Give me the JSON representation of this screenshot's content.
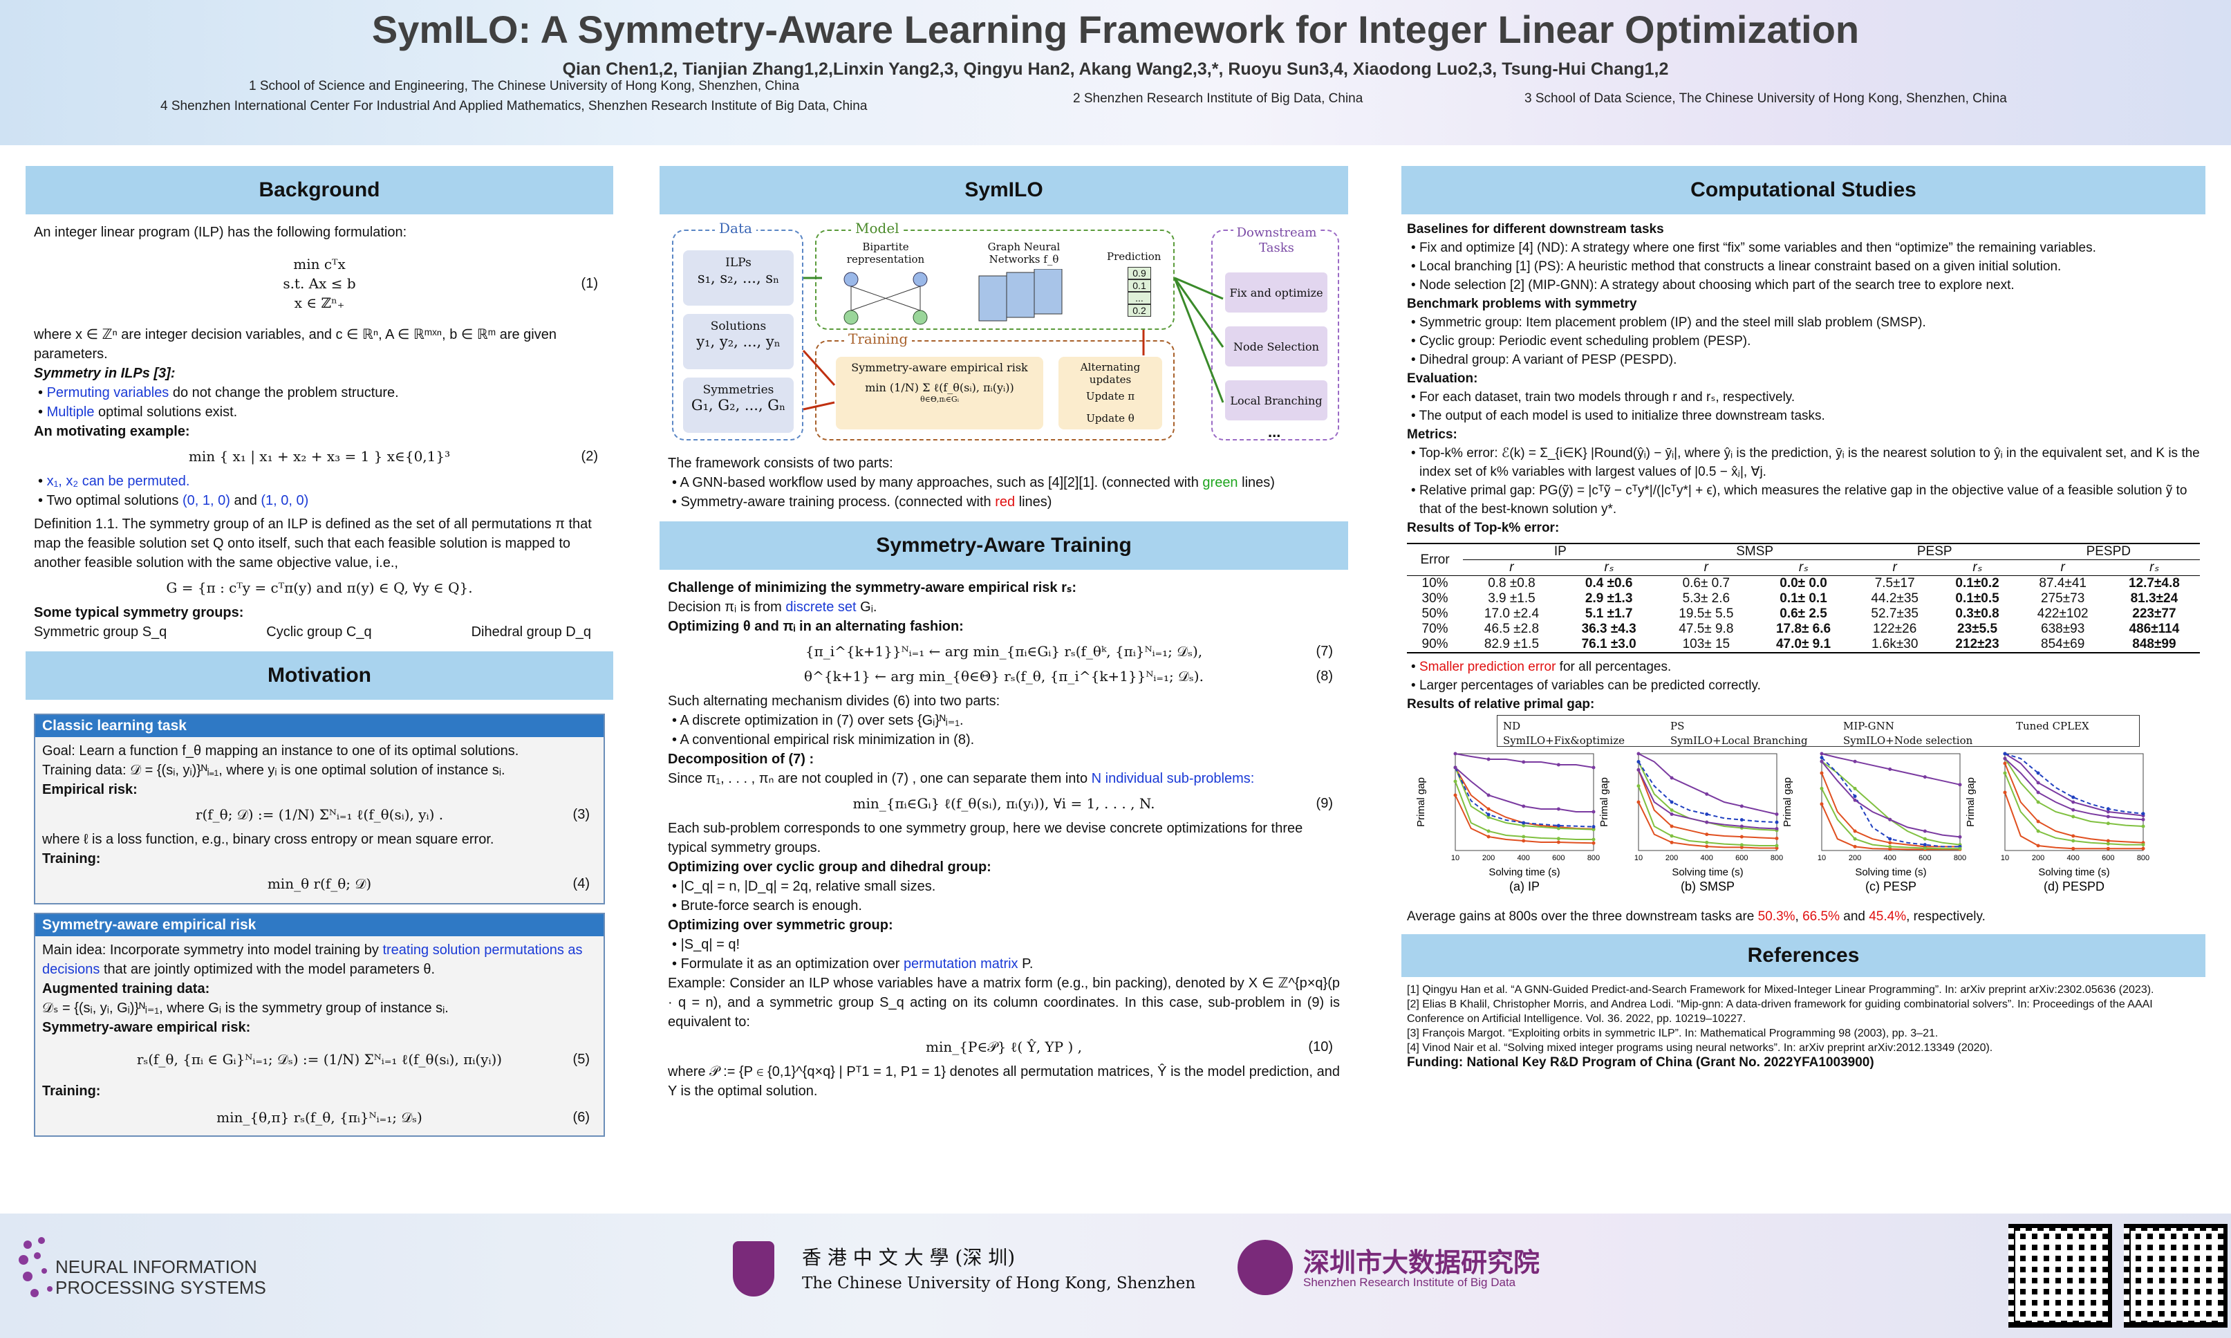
{
  "title": "SymILO: A Symmetry-Aware Learning Framework for Integer Linear Optimization",
  "authors": "Qian Chen1,2, Tianjian Zhang1,2,Linxin Yang2,3, Qingyu Han2, Akang Wang2,3,*, Ruoyu Sun3,4, Xiaodong Luo2,3, Tsung-Hui Chang1,2",
  "affiliations": {
    "a1": "1 School of Science and Engineering, The Chinese University of Hong Kong, Shenzhen, China",
    "a4": "4 Shenzhen International Center For Industrial And Applied Mathematics, Shenzhen Research Institute of Big Data, China",
    "a2": "2 Shenzhen Research Institute of Big Data, China",
    "a3": "3 School of Data Science, The Chinese University of Hong Kong, Shenzhen, China"
  },
  "background": {
    "heading": "Background",
    "intro": "An integer linear program (ILP) has the following formulation:",
    "eq1_line1": "min cᵀx",
    "eq1_line2": "s.t.  Ax ≤ b",
    "eq1_line3": "x ∈ ℤⁿ₊",
    "eq1_num": "(1)",
    "where": "where x ∈ ℤⁿ are integer decision variables, and c ∈ ℝⁿ, A ∈ ℝᵐˣⁿ, b ∈ ℝᵐ are given parameters.",
    "sym_title": "Symmetry in ILPs [3]:",
    "sym_b1a": "Permuting variables",
    "sym_b1b": " do not change the problem structure.",
    "sym_b2a": "Multiple",
    "sym_b2b": " optimal solutions exist.",
    "motiv_title": "An motivating example:",
    "eq2": "min { x₁ | x₁ + x₂ + x₃ = 1 }   x∈{0,1}³",
    "eq2_num": "(2)",
    "mb1": "x₁, x₂ can be permuted.",
    "mb2a": "Two optimal solutions ",
    "mb2b": "(0, 1, 0)",
    "mb2c": " and ",
    "mb2d": "(1, 0, 0)",
    "def": "Definition 1.1. The symmetry group of an ILP is defined as the set of all permutations π that map the feasible solution set Q onto itself, such that each feasible solution is mapped to another feasible solution with the same objective value, i.e.,",
    "eq_g": "G = {π : cᵀy = cᵀπ(y) and π(y) ∈ Q, ∀y ∈ Q}.",
    "groups_title": "Some typical symmetry groups:",
    "g1": "Symmetric group S_q",
    "g2": "Cyclic group C_q",
    "g3": "Dihedral group D_q"
  },
  "motivation": {
    "heading": "Motivation",
    "box1_title": "Classic learning task",
    "goal": "Goal: Learn a function f_θ mapping an instance to one of its optimal solutions.",
    "tdata": "Training data: 𝒟 = {(sᵢ, yᵢ)}ᴺᵢ₌₁, where yᵢ is one optimal solution of instance sᵢ.",
    "erisk": "Empirical risk:",
    "eq3": "r(f_θ; 𝒟) := (1/N) Σᴺᵢ₌₁ ℓ(f_θ(sᵢ), yᵢ) .",
    "eq3_num": "(3)",
    "where_l": "where ℓ is a loss function, e.g., binary cross entropy or mean square error.",
    "training": "Training:",
    "eq4": "min_θ r(f_θ; 𝒟)",
    "eq4_num": "(4)",
    "box2_title": "Symmetry-aware empirical risk",
    "main_a": "Main idea: Incorporate symmetry into model training by ",
    "main_b": "treating solution permutations as decisions",
    "main_c": " that are jointly optimized with the model parameters θ.",
    "aug": "Augmented training data:",
    "aug_eq": "𝒟ₛ = {(sᵢ, yᵢ, Gᵢ)}ᴺᵢ₌₁, where Gᵢ is the symmetry group of instance sᵢ.",
    "sar": "Symmetry-aware empirical risk:",
    "eq5": "rₛ(f_θ, {πᵢ ∈ Gᵢ}ᴺᵢ₌₁; 𝒟ₛ) := (1/N) Σᴺᵢ₌₁ ℓ(f_θ(sᵢ), πᵢ(yᵢ))",
    "eq5_num": "(5)",
    "training2": "Training:",
    "eq6": "min_{θ,π} rₛ(f_θ, {πᵢ}ᴺᵢ₌₁; 𝒟ₛ)",
    "eq6_num": "(6)"
  },
  "symilo": {
    "heading": "SymILO",
    "fig": {
      "data": "Data",
      "ilps": "ILPs",
      "ilps_v": "s₁, s₂, ..., sₙ",
      "sol": "Solutions",
      "sol_v": "y₁, y₂, ..., yₙ",
      "syms": "Symmetries",
      "syms_v": "G₁, G₂, ..., Gₙ",
      "model": "Model",
      "bip": "Bipartite representation",
      "gnn": "Graph Neural Networks f_θ",
      "pred": "Prediction",
      "p1": "0.9",
      "p2": "0.1",
      "p3": "...",
      "p4": "0.2",
      "training": "Training",
      "sarisk": "Symmetry-aware empirical risk",
      "risk_eq": "min (1/N) Σ ℓ(f_θ(sᵢ), πᵢ(yᵢ))",
      "risk_sub": "θ∈Θ,πᵢ∈Gᵢ",
      "alt": "Alternating updates",
      "upi": "Update π",
      "uth": "Update θ",
      "down": "Downstream Tasks",
      "d1": "Fix and optimize",
      "d2": "Node Selection",
      "d3": "Local Branching",
      "d4": "..."
    },
    "fw": "The framework consists of two parts:",
    "fb1a": "A GNN-based workflow used by many approaches, such as [4][2][1]. (connected with ",
    "fb1b": "green",
    "fb1c": " lines)",
    "fb2a": "Symmetry-aware training process. (connected with ",
    "fb2b": "red",
    "fb2c": " lines)"
  },
  "training": {
    "heading": "Symmetry-Aware Training",
    "ch": "Challenge of minimizing the symmetry-aware empirical risk rₛ:",
    "dec_a": "Decision πᵢ is from ",
    "dec_b": "discrete set",
    "dec_c": " Gᵢ.",
    "opt": "Optimizing θ and πᵢ in an alternating fashion:",
    "eq7": "{π_i^{k+1}}ᴺᵢ₌₁ ← arg min_{πᵢ∈Gᵢ} rₛ(f_θᵏ, {πᵢ}ᴺᵢ₌₁; 𝒟ₛ),",
    "eq7_num": "(7)",
    "eq8": "θ^{k+1} ← arg min_{θ∈Θ} rₛ(f_θ, {π_i^{k+1}}ᴺᵢ₌₁; 𝒟ₛ).",
    "eq8_num": "(8)",
    "such": "Such alternating mechanism divides (6) into two parts:",
    "sb1": "A discrete optimization in (7) over sets {Gᵢ}ᴺᵢ₌₁.",
    "sb2": "A conventional empirical risk minimization in (8).",
    "decomp": "Decomposition of (7) :",
    "since_a": "Since π₁, . . . , πₙ are not coupled in (7) , one can separate them into ",
    "since_b": "N individual sub-problems:",
    "eq9": "min_{πᵢ∈Gᵢ} ℓ(f_θ(sᵢ), πᵢ(yᵢ)), ∀i = 1, . . . , N.",
    "eq9_num": "(9)",
    "each": "Each sub-problem corresponds to one symmetry group, here we devise concrete optimizations for three typical symmetry groups.",
    "cyc": "Optimizing over cyclic group and dihedral group:",
    "cb1": "|C_q| = n, |D_q| = 2q, relative small sizes.",
    "cb2": "Brute-force search is enough.",
    "symg": "Optimizing over symmetric group:",
    "sg1": "|S_q| = q!",
    "sg2a": "Formulate it as an optimization over ",
    "sg2b": "permutation matrix",
    "sg2c": " P.",
    "ex": "Example:  Consider an ILP whose variables have a matrix form (e.g., bin packing), denoted by X ∈ ℤ^{p×q}(p · q = n), and a symmetric group S_q acting on its column coordinates. In this case, sub-problem in (9) is equivalent to:",
    "eq10": "min_{P∈𝒫} ℓ( Ŷ, YP ) ,",
    "eq10_num": "(10)",
    "wherep": "where 𝒫 := {P ∈ {0,1}^{q×q} | Pᵀ1 = 1, P1 = 1} denotes all permutation matrices, Ŷ is the model prediction, and Y is the optimal solution."
  },
  "comp": {
    "heading": "Computational Studies",
    "base_title": "Baselines for different downstream tasks",
    "b1": "Fix and optimize [4] (ND): A strategy where one first “fix” some variables and then “optimize” the remaining variables.",
    "b2": "Local branching [1] (PS): A heuristic method that constructs a linear constraint based on a given initial solution.",
    "b3": "Node selection [2] (MIP-GNN): A strategy about choosing which part of the search tree to explore next.",
    "bench_title": "Benchmark problems with symmetry",
    "bb1": "Symmetric group: Item placement problem (IP) and the steel mill slab problem (SMSP).",
    "bb2": "Cyclic group: Periodic event scheduling problem (PESP).",
    "bb3": "Dihedral group: A variant of PESP (PESPD).",
    "eval_title": "Evaluation:",
    "e1": "For each dataset, train two models through r and rₛ, respectively.",
    "e2": "The output of each model is used to initialize three downstream tasks.",
    "metrics_title": "Metrics:",
    "m1": "Top-k% error: ℰ(k) = Σ_{i∈K} |Round(ŷᵢ) − ȳᵢ|, where ŷᵢ is the prediction, ȳᵢ is the nearest solution to ŷᵢ in the equivalent set, and K is the index set of k% variables with largest values of |0.5 − x̂ⱼ|, ∀j.",
    "m2": "Relative primal gap: PG(ỹ) = |cᵀỹ − cᵀy*|/(|cᵀy*| + ϵ), which measures the relative gap in the objective value of a feasible solution ỹ to that of the best-known solution y*.",
    "topk_title": "Results of Top-k% error:",
    "table": {
      "h_err": "Error",
      "groups": [
        "IP",
        "SMSP",
        "PESP",
        "PESPD"
      ],
      "sub": [
        "r",
        "rₛ"
      ],
      "rows": [
        [
          "10%",
          "0.8 ±0.8",
          "0.4 ±0.6",
          "0.6± 0.7",
          "0.0± 0.0",
          "7.5±17",
          "0.1±0.2",
          "87.4±41",
          "12.7±4.8"
        ],
        [
          "30%",
          "3.9 ±1.5",
          "2.9 ±1.3",
          "5.3± 2.6",
          "0.1± 0.1",
          "44.2±35",
          "0.1±0.5",
          "275±73",
          "81.3±24"
        ],
        [
          "50%",
          "17.0 ±2.4",
          "5.1 ±1.7",
          "19.5± 5.5",
          "0.6± 2.5",
          "52.7±35",
          "0.3±0.8",
          "422±102",
          "223±77"
        ],
        [
          "70%",
          "46.5 ±2.8",
          "36.3 ±4.3",
          "47.5± 9.8",
          "17.8± 6.6",
          "122±26",
          "23±5.5",
          "638±93",
          "486±114"
        ],
        [
          "90%",
          "82.9 ±1.5",
          "76.1 ±3.0",
          "103± 15",
          "47.0± 9.1",
          "1.6k±30",
          "212±23",
          "854±69",
          "848±99"
        ]
      ]
    },
    "r1a": "Smaller prediction error",
    "r1b": " for all percentages.",
    "r2": "Larger percentages of variables can be predicted correctly.",
    "rpg_title": "Results of relative primal gap:",
    "legend": [
      "ND",
      "PS",
      "MIP-GNN",
      "Tuned CPLEX",
      "SymILO+Fix&optimize",
      "SymILO+Local Branching",
      "SymILO+Node selection"
    ],
    "ylabel": "Primal gap",
    "xlabel": "Solving time (s)",
    "xticks": [
      "10",
      "200",
      "400",
      "600",
      "800"
    ],
    "captions": [
      "(a) IP",
      "(b) SMSP",
      "(c) PESP",
      "(d) PESPD"
    ],
    "avg_a": "Average gains at 800s over the three downstream tasks are ",
    "avg_b": "50.3%",
    "avg_c": ", ",
    "avg_d": "66.5%",
    "avg_e": " and ",
    "avg_f": "45.4%",
    "avg_g": ", respectively."
  },
  "refs": {
    "heading": "References",
    "r1": "[1] Qingyu Han et al. “A GNN-Guided Predict-and-Search Framework for Mixed-Integer Linear Programming”. In: arXiv preprint arXiv:2302.05636 (2023).",
    "r2": "[2] Elias B Khalil, Christopher Morris, and Andrea Lodi. “Mip-gnn: A data-driven framework for guiding combinatorial solvers”. In: Proceedings of the AAAI Conference on Artificial Intelligence. Vol. 36. 2022, pp. 10219–10227.",
    "r3": "[3] François Margot. “Exploiting orbits in symmetric ILP”. In: Mathematical Programming 98 (2003), pp. 3–21.",
    "r4": "[4] Vinod Nair et al. “Solving mixed integer programs using neural networks”. In: arXiv preprint arXiv:2012.13349 (2020).",
    "funding": "Funding: National Key R&D Program of China (Grant No. 2022YFA1003900)"
  },
  "footer": {
    "neurips1": "NEURAL INFORMATION",
    "neurips2": "PROCESSING SYSTEMS",
    "cuhk_cn": "香 港 中 文 大 學 (深 圳)",
    "cuhk_en": "The Chinese University of Hong Kong, Shenzhen",
    "sribd_cn": "深圳市大数据研究院",
    "sribd_en": "Shenzhen Research Institute of Big Data"
  },
  "colors": {
    "header_bar": "#a9d3ee",
    "box_header": "#2f79c5",
    "accent_blue": "#1a3ad6",
    "accent_red": "#e01010",
    "accent_green": "#1fa51f"
  },
  "chart_data": [
    {
      "type": "line",
      "title": "(a) IP",
      "xlabel": "Solving time (s)",
      "ylabel": "Primal gap",
      "xlim": [
        10,
        800
      ],
      "ylim": [
        0,
        0.35
      ],
      "x": [
        10,
        100,
        200,
        300,
        400,
        500,
        600,
        700,
        800
      ],
      "series": [
        {
          "name": "ND",
          "values": [
            0.3,
            0.2,
            0.15,
            0.12,
            0.1,
            0.09,
            0.085,
            0.08,
            0.078
          ]
        },
        {
          "name": "PS",
          "values": [
            0.3,
            0.16,
            0.12,
            0.1,
            0.09,
            0.085,
            0.08,
            0.078,
            0.076
          ]
        },
        {
          "name": "MIP-GNN",
          "values": [
            0.35,
            0.34,
            0.33,
            0.33,
            0.32,
            0.32,
            0.31,
            0.31,
            0.3
          ]
        },
        {
          "name": "Tuned CPLEX",
          "values": [
            0.3,
            0.18,
            0.13,
            0.11,
            0.1,
            0.095,
            0.09,
            0.088,
            0.086
          ]
        },
        {
          "name": "SymILO+Fix&optimize",
          "values": [
            0.2,
            0.08,
            0.05,
            0.04,
            0.035,
            0.03,
            0.03,
            0.028,
            0.027
          ]
        },
        {
          "name": "SymILO+Local Branching",
          "values": [
            0.25,
            0.1,
            0.07,
            0.055,
            0.05,
            0.045,
            0.043,
            0.04,
            0.04
          ]
        },
        {
          "name": "SymILO+Node selection",
          "values": [
            0.3,
            0.25,
            0.2,
            0.18,
            0.16,
            0.15,
            0.15,
            0.14,
            0.14
          ]
        }
      ]
    },
    {
      "type": "line",
      "title": "(b) SMSP",
      "xlabel": "Solving time (s)",
      "ylabel": "Primal gap",
      "xlim": [
        10,
        800
      ],
      "ylim": [
        0,
        1.2
      ],
      "x": [
        10,
        100,
        200,
        300,
        400,
        500,
        600,
        700,
        800
      ],
      "series": [
        {
          "name": "ND",
          "values": [
            1.0,
            0.5,
            0.3,
            0.25,
            0.2,
            0.18,
            0.17,
            0.16,
            0.15
          ]
        },
        {
          "name": "PS",
          "values": [
            1.1,
            0.7,
            0.5,
            0.4,
            0.35,
            0.3,
            0.28,
            0.26,
            0.25
          ]
        },
        {
          "name": "MIP-GNN",
          "values": [
            1.2,
            1.1,
            0.9,
            0.8,
            0.7,
            0.6,
            0.55,
            0.5,
            0.45
          ]
        },
        {
          "name": "Tuned CPLEX",
          "values": [
            1.1,
            0.8,
            0.6,
            0.5,
            0.45,
            0.4,
            0.38,
            0.36,
            0.35
          ]
        },
        {
          "name": "SymILO+Fix&optimize",
          "values": [
            0.6,
            0.2,
            0.1,
            0.07,
            0.05,
            0.04,
            0.04,
            0.03,
            0.03
          ]
        },
        {
          "name": "SymILO+Local Branching",
          "values": [
            0.8,
            0.3,
            0.18,
            0.12,
            0.1,
            0.08,
            0.07,
            0.06,
            0.06
          ]
        },
        {
          "name": "SymILO+Node selection",
          "values": [
            1.0,
            0.6,
            0.45,
            0.4,
            0.35,
            0.32,
            0.3,
            0.28,
            0.27
          ]
        }
      ]
    },
    {
      "type": "line",
      "title": "(c) PESP",
      "xlabel": "Solving time (s)",
      "ylabel": "Primal gap",
      "xlim": [
        10,
        800
      ],
      "ylim": [
        0,
        2.5
      ],
      "x": [
        10,
        100,
        200,
        300,
        400,
        500,
        600,
        700,
        800
      ],
      "series": [
        {
          "name": "ND",
          "values": [
            2.0,
            1.0,
            0.5,
            0.3,
            0.2,
            0.15,
            0.1,
            0.1,
            0.1
          ]
        },
        {
          "name": "PS",
          "values": [
            2.3,
            2.0,
            1.6,
            1.2,
            0.8,
            0.5,
            0.3,
            0.2,
            0.15
          ]
        },
        {
          "name": "MIP-GNN",
          "values": [
            2.5,
            2.4,
            2.3,
            2.2,
            2.1,
            2.0,
            1.9,
            1.8,
            1.7
          ]
        },
        {
          "name": "Tuned CPLEX",
          "values": [
            2.4,
            2.0,
            1.4,
            0.6,
            0.3,
            0.2,
            0.15,
            0.1,
            0.1
          ]
        },
        {
          "name": "SymILO+Fix&optimize",
          "values": [
            1.2,
            0.3,
            0.1,
            0.05,
            0.04,
            0.03,
            0.03,
            0.03,
            0.03
          ]
        },
        {
          "name": "SymILO+Local Branching",
          "values": [
            1.6,
            0.8,
            0.3,
            0.15,
            0.1,
            0.08,
            0.06,
            0.05,
            0.05
          ]
        },
        {
          "name": "SymILO+Node selection",
          "values": [
            2.3,
            1.8,
            1.3,
            1.0,
            0.8,
            0.6,
            0.5,
            0.4,
            0.35
          ]
        }
      ]
    },
    {
      "type": "line",
      "title": "(d) PESPD",
      "xlabel": "Solving time (s)",
      "ylabel": "Primal gap",
      "xlim": [
        10,
        800
      ],
      "ylim": [
        0,
        10
      ],
      "x": [
        10,
        100,
        200,
        300,
        400,
        500,
        600,
        700,
        800
      ],
      "series": [
        {
          "name": "ND",
          "values": [
            9,
            5,
            3,
            2,
            1.5,
            1.2,
            1.0,
            0.9,
            0.8
          ]
        },
        {
          "name": "PS",
          "values": [
            9.5,
            7,
            5,
            4,
            3.5,
            3,
            2.8,
            2.6,
            2.5
          ]
        },
        {
          "name": "MIP-GNN",
          "values": [
            10,
            9,
            7,
            6,
            5,
            4.5,
            4,
            3.8,
            3.6
          ]
        },
        {
          "name": "Tuned CPLEX",
          "values": [
            10,
            9.5,
            8,
            6.5,
            5.5,
            4.8,
            4.3,
            4,
            3.8
          ]
        },
        {
          "name": "SymILO+Fix&optimize",
          "values": [
            6,
            1.5,
            0.5,
            0.3,
            0.2,
            0.2,
            0.2,
            0.2,
            0.2
          ]
        },
        {
          "name": "SymILO+Local Branching",
          "values": [
            8,
            4,
            2,
            1.3,
            1,
            0.8,
            0.7,
            0.6,
            0.6
          ]
        },
        {
          "name": "SymILO+Node selection",
          "values": [
            9.5,
            8,
            6,
            5,
            4.2,
            3.8,
            3.5,
            3.3,
            3.2
          ]
        }
      ]
    }
  ]
}
